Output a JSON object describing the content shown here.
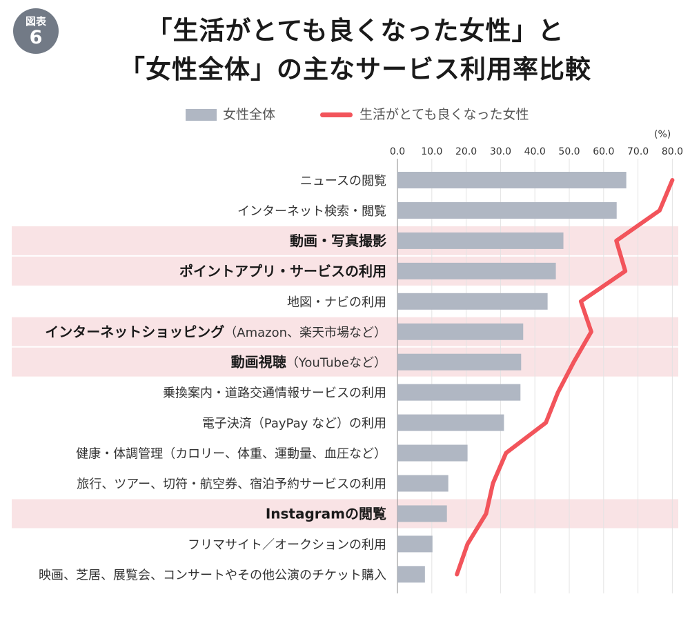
{
  "badge": {
    "line1": "図表",
    "line2": "6"
  },
  "chart_data": {
    "type": "bar",
    "title_line1": "「生活がとても良くなった女性」と",
    "title_line2": "「女性全体」の主なサービス利用率比較",
    "unit_label": "(%)",
    "xlim": [
      0,
      80
    ],
    "xticks": [
      "0.0",
      "10.0",
      "20.0",
      "30.0",
      "40.0",
      "50.0",
      "60.0",
      "70.0",
      "80.0"
    ],
    "xtick_values": [
      0,
      10,
      20,
      30,
      40,
      50,
      60,
      70,
      80
    ],
    "legend": [
      {
        "name": "女性全体",
        "kind": "bar",
        "color": "#b0b7c3"
      },
      {
        "name": "生活がとても良くなった女性",
        "kind": "line",
        "color": "#f2545b"
      }
    ],
    "highlight_color": "#f9e3e5",
    "categories": [
      {
        "label": "ニュースの閲覧",
        "highlight": false
      },
      {
        "label": "インターネット検索・閲覧",
        "highlight": false
      },
      {
        "label": "動画・写真撮影",
        "highlight": true
      },
      {
        "label": "ポイントアプリ・サービスの利用",
        "highlight": true
      },
      {
        "label": "地図・ナビの利用",
        "highlight": false
      },
      {
        "label": "インターネットショッピング",
        "suffix": "（Amazon、楽天市場など）",
        "highlight": true
      },
      {
        "label": "動画視聴",
        "suffix": "（YouTubeなど）",
        "highlight": true
      },
      {
        "label": "乗換案内・道路交通情報サービスの利用",
        "highlight": false
      },
      {
        "label": "電子決済（PayPay など）の利用",
        "highlight": false
      },
      {
        "label": "健康・体調管理（カロリー、体重、運動量、血圧など）",
        "highlight": false
      },
      {
        "label": "旅行、ツアー、切符・航空券、宿泊予約サービスの利用",
        "highlight": false
      },
      {
        "label": "Instagramの閲覧",
        "highlight": true
      },
      {
        "label": "フリマサイト／オークションの利用",
        "highlight": false
      },
      {
        "label": "映画、芝居、展覧会、コンサートやその他公演のチケット購入",
        "highlight": false
      }
    ],
    "series": [
      {
        "name": "女性全体",
        "type": "bar",
        "values": [
          66.6,
          63.8,
          48.3,
          46.1,
          43.7,
          36.6,
          36.0,
          35.8,
          31.0,
          20.4,
          14.8,
          14.4,
          10.2,
          8.0
        ]
      },
      {
        "name": "生活がとても良くなった女性",
        "type": "line",
        "values": [
          80.0,
          76.3,
          63.7,
          66.3,
          53.4,
          56.4,
          51.3,
          46.7,
          43.2,
          31.6,
          27.8,
          25.8,
          20.4,
          17.3
        ]
      }
    ]
  }
}
